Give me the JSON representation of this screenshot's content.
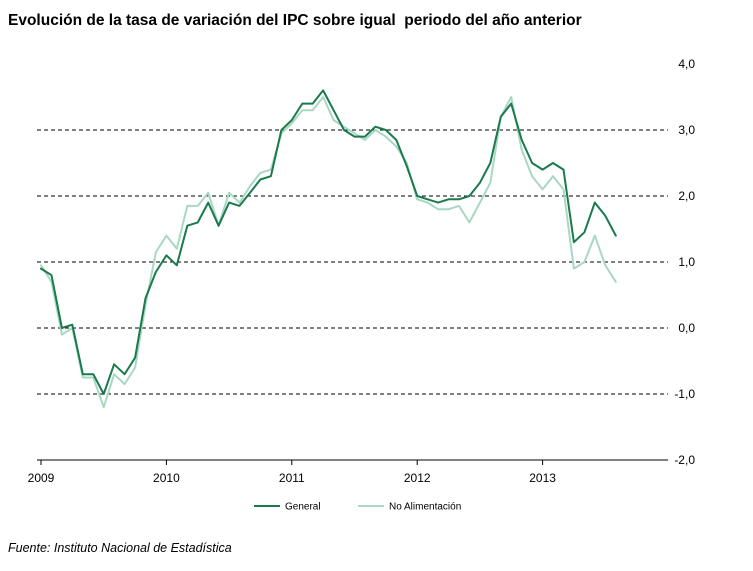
{
  "title": "Evolución de la tasa de variación del IPC sobre igual  periodo del año anterior",
  "source": "Fuente: Instituto Nacional de Estadística",
  "chart_data": {
    "type": "line",
    "title": "Evolución de la tasa de variación del IPC sobre igual  periodo del año anterior",
    "xlabel": "",
    "ylabel": "",
    "ylim": [
      -2.0,
      4.0
    ],
    "yticks": [
      4.0,
      3.0,
      2.0,
      1.0,
      0.0,
      -1.0,
      -2.0
    ],
    "ytick_labels": [
      "4,0",
      "3,0",
      "2,0",
      "1,0",
      "0,0",
      "-1,0",
      "-2,0"
    ],
    "y_axis_side": "right",
    "xticks": [
      "2009",
      "2010",
      "2011",
      "2012",
      "2013"
    ],
    "grid": "dashed horizontal at 3,0 2,0 1,0 0,0 -1,0",
    "legend_position": "bottom-center",
    "x": [
      "2009-01",
      "2009-02",
      "2009-03",
      "2009-04",
      "2009-05",
      "2009-06",
      "2009-07",
      "2009-08",
      "2009-09",
      "2009-10",
      "2009-11",
      "2009-12",
      "2010-01",
      "2010-02",
      "2010-03",
      "2010-04",
      "2010-05",
      "2010-06",
      "2010-07",
      "2010-08",
      "2010-09",
      "2010-10",
      "2010-11",
      "2010-12",
      "2011-01",
      "2011-02",
      "2011-03",
      "2011-04",
      "2011-05",
      "2011-06",
      "2011-07",
      "2011-08",
      "2011-09",
      "2011-10",
      "2011-11",
      "2011-12",
      "2012-01",
      "2012-02",
      "2012-03",
      "2012-04",
      "2012-05",
      "2012-06",
      "2012-07",
      "2012-08",
      "2012-09",
      "2012-10",
      "2012-11",
      "2012-12",
      "2013-01",
      "2013-02",
      "2013-03",
      "2013-04",
      "2013-05",
      "2013-06",
      "2013-07",
      "2013-08"
    ],
    "series": [
      {
        "name": "General",
        "color": "#1a7a4c",
        "values": [
          0.9,
          0.8,
          0.0,
          0.05,
          -0.7,
          -0.7,
          -1.0,
          -0.55,
          -0.7,
          -0.45,
          0.45,
          0.85,
          1.1,
          0.95,
          1.55,
          1.6,
          1.9,
          1.55,
          1.9,
          1.85,
          2.05,
          2.25,
          2.3,
          3.0,
          3.15,
          3.4,
          3.4,
          3.6,
          3.3,
          3.0,
          2.9,
          2.9,
          3.05,
          3.0,
          2.85,
          2.45,
          2.0,
          1.95,
          1.9,
          1.95,
          1.95,
          2.0,
          2.2,
          2.5,
          3.2,
          3.4,
          2.85,
          2.5,
          2.4,
          2.5,
          2.4,
          1.3,
          1.45,
          1.9,
          1.7,
          1.4
        ]
      },
      {
        "name": "No Alimentación",
        "color": "#a8d8c2",
        "values": [
          0.95,
          0.7,
          -0.1,
          0.0,
          -0.75,
          -0.75,
          -1.2,
          -0.7,
          -0.85,
          -0.6,
          0.35,
          1.15,
          1.4,
          1.2,
          1.85,
          1.85,
          2.05,
          1.55,
          2.05,
          1.9,
          2.15,
          2.35,
          2.4,
          2.95,
          3.1,
          3.3,
          3.3,
          3.5,
          3.15,
          3.05,
          2.95,
          2.85,
          3.0,
          2.9,
          2.75,
          2.5,
          1.95,
          1.9,
          1.8,
          1.8,
          1.85,
          1.6,
          1.9,
          2.2,
          3.2,
          3.5,
          2.7,
          2.3,
          2.1,
          2.3,
          2.1,
          0.9,
          1.0,
          1.4,
          0.95,
          0.7
        ]
      }
    ]
  }
}
